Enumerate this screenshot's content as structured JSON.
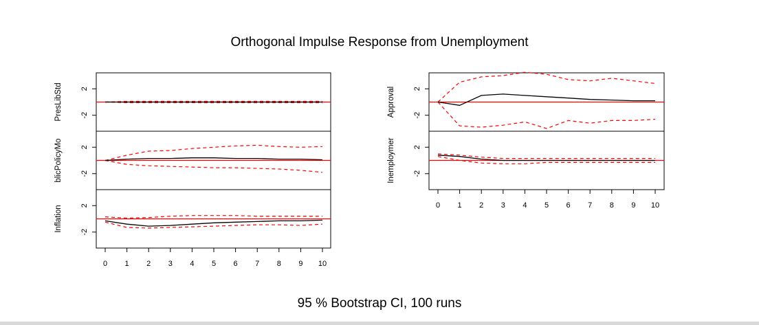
{
  "chart_data": {
    "type": "line",
    "title": "Orthogonal Impulse Response from Unemployment",
    "subtitle": "95 % Bootstrap CI,  100 runs",
    "x": [
      0,
      1,
      2,
      3,
      4,
      5,
      6,
      7,
      8,
      9,
      10
    ],
    "xlim": [
      0,
      10
    ],
    "ylim": [
      -4,
      4
    ],
    "yticks": [
      -2,
      2
    ],
    "colors": {
      "response": "#000000",
      "ci": "#ff0000",
      "zero": "#ff0000"
    },
    "panels": [
      {
        "label": "PresLibStd",
        "group": "left",
        "row": 0,
        "response": [
          0,
          0,
          0,
          0,
          0,
          0,
          0,
          0,
          0,
          0,
          0
        ],
        "upper": [
          0,
          0.1,
          0.1,
          0.1,
          0.1,
          0.1,
          0.1,
          0.1,
          0.1,
          0.1,
          0.1
        ],
        "lower": [
          0,
          -0.1,
          -0.1,
          -0.1,
          -0.1,
          -0.1,
          -0.1,
          -0.1,
          -0.1,
          -0.1,
          -0.1
        ]
      },
      {
        "label": "blicPolicyMo",
        "group": "left",
        "row": 1,
        "response": [
          0,
          0.2,
          0.3,
          0.3,
          0.4,
          0.4,
          0.3,
          0.3,
          0.2,
          0.2,
          0.1
        ],
        "upper": [
          0,
          0.8,
          1.4,
          1.5,
          1.8,
          2.0,
          2.2,
          2.3,
          2.1,
          2.0,
          2.1
        ],
        "lower": [
          0,
          -0.6,
          -0.8,
          -0.9,
          -1.0,
          -1.1,
          -1.1,
          -1.2,
          -1.3,
          -1.5,
          -1.8
        ]
      },
      {
        "label": "Inflation",
        "group": "left",
        "row": 2,
        "response": [
          -0.3,
          -0.8,
          -1.1,
          -1.0,
          -0.8,
          -0.6,
          -0.5,
          -0.4,
          -0.3,
          -0.3,
          -0.2
        ],
        "upper": [
          0.3,
          0.1,
          0.2,
          0.4,
          0.5,
          0.5,
          0.5,
          0.4,
          0.4,
          0.4,
          0.4
        ],
        "lower": [
          -0.5,
          -1.3,
          -1.4,
          -1.3,
          -1.2,
          -1.1,
          -1.0,
          -0.9,
          -0.9,
          -1.0,
          -0.8
        ]
      },
      {
        "label": "Approval",
        "group": "right",
        "row": 0,
        "response": [
          0,
          -0.5,
          1.0,
          1.2,
          1.0,
          0.8,
          0.6,
          0.4,
          0.3,
          0.2,
          0.2
        ],
        "upper": [
          0,
          3.0,
          3.8,
          4.0,
          4.5,
          4.2,
          3.4,
          3.2,
          3.6,
          3.2,
          2.8
        ],
        "lower": [
          0,
          -3.6,
          -3.8,
          -3.5,
          -3.0,
          -4.0,
          -2.8,
          -3.2,
          -2.8,
          -2.8,
          -2.6
        ]
      },
      {
        "label": "Inemploymer",
        "group": "right",
        "row": 1,
        "response": [
          0.8,
          0.6,
          0.2,
          0,
          0,
          0,
          0,
          0,
          0,
          0,
          0
        ],
        "upper": [
          1.0,
          0.8,
          0.5,
          0.3,
          0.3,
          0.3,
          0.3,
          0.3,
          0.3,
          0.3,
          0.3
        ],
        "lower": [
          0.6,
          0,
          -0.4,
          -0.5,
          -0.5,
          -0.3,
          -0.3,
          -0.3,
          -0.3,
          -0.3,
          -0.3
        ]
      }
    ]
  }
}
